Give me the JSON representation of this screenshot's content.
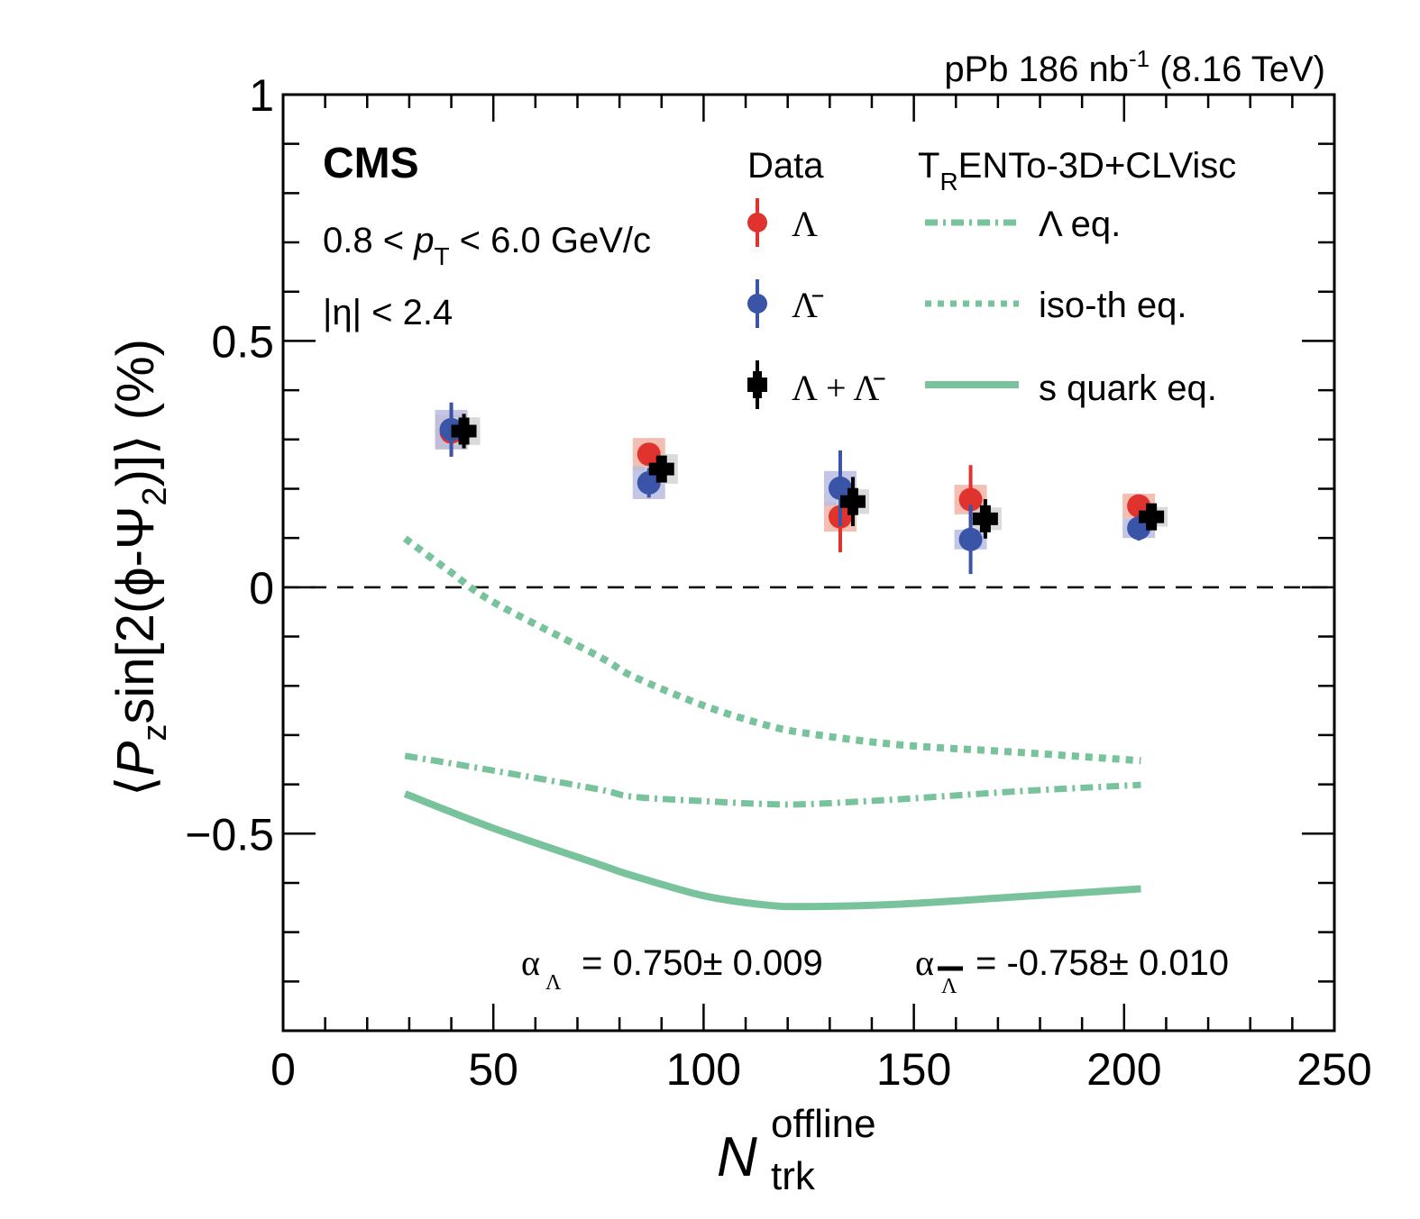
{
  "chart_data": {
    "type": "scatter",
    "title": "",
    "experiment_label": "CMS",
    "lumi_label": {
      "prefix": "pPb 186 nb",
      "sup": "-1",
      "suffix": " (8.16 TeV)"
    },
    "cuts": [
      {
        "parts": [
          "0.8 < ",
          "p",
          "T",
          " < 6.0 GeV/c"
        ]
      },
      {
        "text": "|η| < 2.4"
      }
    ],
    "xlabel": {
      "main": "N",
      "sup": "offline",
      "sub": "trk"
    },
    "ylabel": {
      "pre": "⟨",
      "P": "P",
      "sub_z": "z",
      "mid": "sin[2(ϕ-Ψ",
      "sub_2": "2",
      "post": ")]⟩ (%)"
    },
    "xlim": [
      0,
      250
    ],
    "ylim": [
      -0.9,
      1.0
    ],
    "xticks": [
      0,
      50,
      100,
      150,
      200,
      250
    ],
    "xtick_labels": [
      "0",
      "50",
      "100",
      "150",
      "200",
      "250"
    ],
    "yticks": [
      -0.5,
      0,
      0.5,
      1
    ],
    "ytick_labels": [
      "−0.5",
      "0",
      "0.5",
      "1"
    ],
    "zero_line": true,
    "legend": {
      "data_header": "Data",
      "model_header": {
        "main": "T",
        "sub": "R",
        "rest": "ENTo-3D+CLVisc"
      },
      "data_entries": [
        "Λ",
        "Λ̄",
        "Λ + Λ̄"
      ],
      "model_entries": [
        "Λ eq.",
        "iso-th eq.",
        "s quark eq."
      ],
      "placement": "top-right"
    },
    "annotation": {
      "alpha_lambda": "= 0.750± 0.009",
      "alpha_antilambda": "= -0.758± 0.010"
    },
    "colors": {
      "lambda": "#e0332e",
      "antilambda": "#3a55a8",
      "combined": "#000000",
      "model": "#78c29c",
      "lambda_syst": "#f0b4a4",
      "antilambda_syst": "#b9bde0",
      "combined_syst": "#d4d4d4"
    },
    "series": [
      {
        "name": "Λ",
        "kind": "data",
        "x": [
          40,
          87,
          132.5,
          163.5,
          203.5
        ],
        "y": [
          0.315,
          0.27,
          0.143,
          0.178,
          0.165
        ],
        "stat_err": [
          0.05,
          0.02,
          0.072,
          0.07,
          0.02
        ],
        "syst_err": [
          0.035,
          0.033,
          0.03,
          0.03,
          0.025
        ]
      },
      {
        "name": "Λ̄",
        "kind": "data",
        "x": [
          40,
          87,
          132.5,
          163.5,
          203.5
        ],
        "y": [
          0.32,
          0.212,
          0.201,
          0.097,
          0.12
        ],
        "stat_err": [
          0.055,
          0.03,
          0.077,
          0.07,
          0.025
        ],
        "syst_err": [
          0.04,
          0.033,
          0.035,
          0.02,
          0.02
        ]
      },
      {
        "name": "Λ + Λ̄",
        "kind": "data",
        "x": [
          43,
          90,
          135.5,
          167,
          206.5
        ],
        "y": [
          0.317,
          0.24,
          0.174,
          0.139,
          0.143
        ],
        "stat_err": [
          0.035,
          0.025,
          0.05,
          0.04,
          0.027
        ],
        "syst_err": [
          0.028,
          0.03,
          0.025,
          0.023,
          0.02
        ]
      },
      {
        "name": "Λ eq.",
        "kind": "model",
        "style": "dashdot",
        "x": [
          29,
          50,
          75,
          83,
          100,
          115,
          125,
          147,
          175,
          204
        ],
        "y": [
          -0.342,
          -0.372,
          -0.41,
          -0.425,
          -0.434,
          -0.44,
          -0.44,
          -0.43,
          -0.414,
          -0.401
        ]
      },
      {
        "name": "iso-th eq.",
        "kind": "model",
        "style": "dotted",
        "x": [
          29,
          40,
          50,
          75,
          83,
          100,
          115,
          125,
          147,
          175,
          204
        ],
        "y": [
          0.099,
          0.03,
          -0.03,
          -0.14,
          -0.18,
          -0.24,
          -0.28,
          -0.297,
          -0.32,
          -0.335,
          -0.352
        ]
      },
      {
        "name": "s quark eq.",
        "kind": "model",
        "style": "solid",
        "x": [
          29,
          50,
          75,
          83,
          100,
          115,
          125,
          147,
          175,
          204
        ],
        "y": [
          -0.419,
          -0.489,
          -0.562,
          -0.585,
          -0.626,
          -0.645,
          -0.648,
          -0.643,
          -0.628,
          -0.612
        ]
      }
    ]
  }
}
